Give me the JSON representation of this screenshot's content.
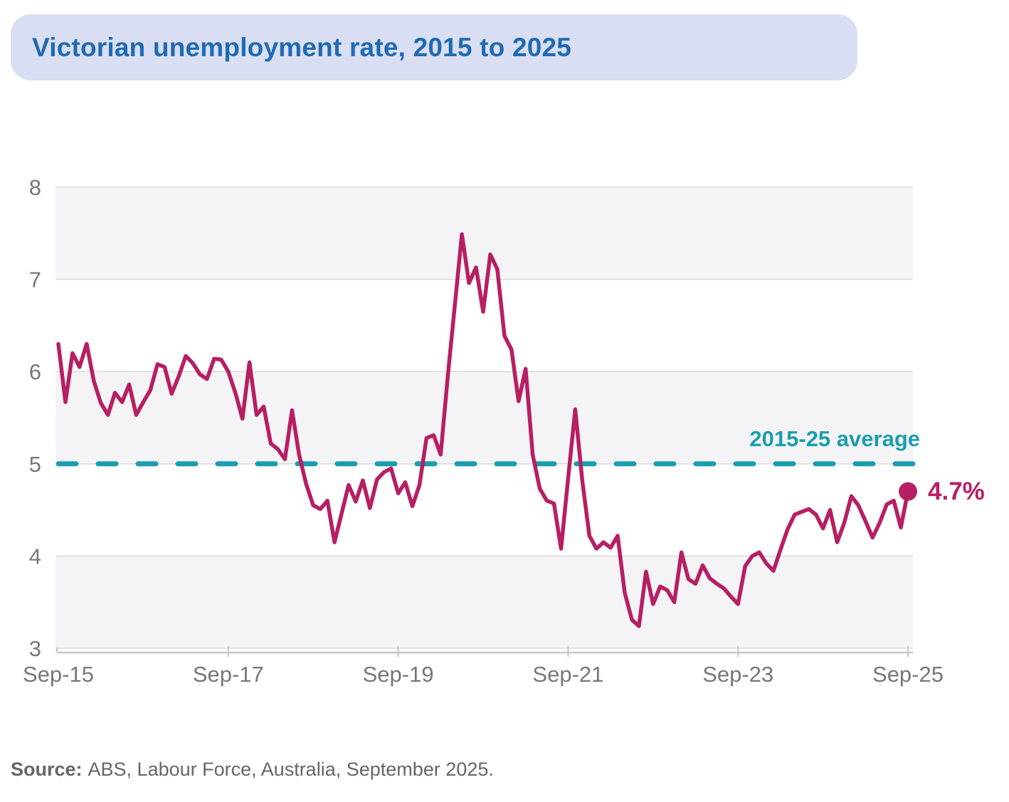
{
  "title": {
    "text": "Victorian unemployment rate, 2015 to 2025"
  },
  "annotations": {
    "average_label": "2015-25 average",
    "end_label": "4.7%"
  },
  "source": {
    "label": "Source:",
    "text": "ABS, Labour Force, Australia, September 2025."
  },
  "colors": {
    "series_line": "#b71f63",
    "end_marker": "#b71f63",
    "end_label_text": "#b71f63",
    "average_line": "#1a9eae",
    "average_label_text": "#1a9eae",
    "title_text": "#1f6ab3",
    "title_background": "#d9def2",
    "axis_label_text": "#777777",
    "source_text": "#666666",
    "gridline": "#dcdcdc",
    "axis_line": "#c6c6c6",
    "band_fill": "#f4f4f6",
    "page_background": "#ffffff"
  },
  "chart_data": {
    "type": "line",
    "title": "Victorian unemployment rate, 2015 to 2025",
    "xlabel": "",
    "ylabel": "",
    "x_unit": "month",
    "months_total": 120,
    "x_tick_labels": [
      "Sep-15",
      "Sep-17",
      "Sep-19",
      "Sep-21",
      "Sep-23",
      "Sep-25"
    ],
    "x_tick_month_indices": [
      0,
      24,
      48,
      72,
      96,
      120
    ],
    "y_ticks": [
      3,
      4,
      5,
      6,
      7,
      8
    ],
    "ylim": [
      3,
      8
    ],
    "grid": true,
    "shaded_bands": [
      [
        3,
        4
      ],
      [
        5,
        6
      ],
      [
        7,
        8
      ]
    ],
    "average_line": {
      "value": 5.0,
      "label": "2015-25 average"
    },
    "end_point": {
      "x_label": "Sep-25",
      "value": 4.7,
      "label": "4.7%"
    },
    "legend": null,
    "series": [
      {
        "name": "Victorian unemployment rate (%)",
        "start": "Sep-15",
        "end": "Sep-25",
        "frequency": "monthly",
        "values": [
          6.3,
          5.67,
          6.2,
          6.05,
          6.3,
          5.9,
          5.66,
          5.53,
          5.77,
          5.67,
          5.86,
          5.53,
          5.67,
          5.8,
          6.08,
          6.05,
          5.76,
          5.95,
          6.17,
          6.09,
          5.97,
          5.92,
          6.14,
          6.13,
          6.0,
          5.77,
          5.49,
          6.1,
          5.53,
          5.62,
          5.22,
          5.16,
          5.05,
          5.58,
          5.1,
          4.78,
          4.55,
          4.51,
          4.6,
          4.15,
          4.46,
          4.77,
          4.59,
          4.82,
          4.52,
          4.83,
          4.91,
          4.95,
          4.68,
          4.8,
          4.54,
          4.77,
          5.28,
          5.31,
          5.1,
          5.95,
          6.72,
          7.49,
          6.96,
          7.13,
          6.65,
          7.27,
          7.11,
          6.39,
          6.24,
          5.68,
          6.03,
          5.1,
          4.73,
          4.6,
          4.57,
          4.08,
          4.84,
          5.59,
          4.82,
          4.22,
          4.08,
          4.15,
          4.09,
          4.22,
          3.6,
          3.31,
          3.24,
          3.83,
          3.48,
          3.67,
          3.63,
          3.5,
          4.04,
          3.75,
          3.7,
          3.9,
          3.76,
          3.7,
          3.65,
          3.56,
          3.48,
          3.89,
          4.0,
          4.04,
          3.92,
          3.84,
          4.07,
          4.29,
          4.45,
          4.48,
          4.51,
          4.45,
          4.3,
          4.5,
          4.15,
          4.36,
          4.65,
          4.55,
          4.38,
          4.2,
          4.36,
          4.56,
          4.6,
          4.31,
          4.7
        ]
      }
    ]
  }
}
